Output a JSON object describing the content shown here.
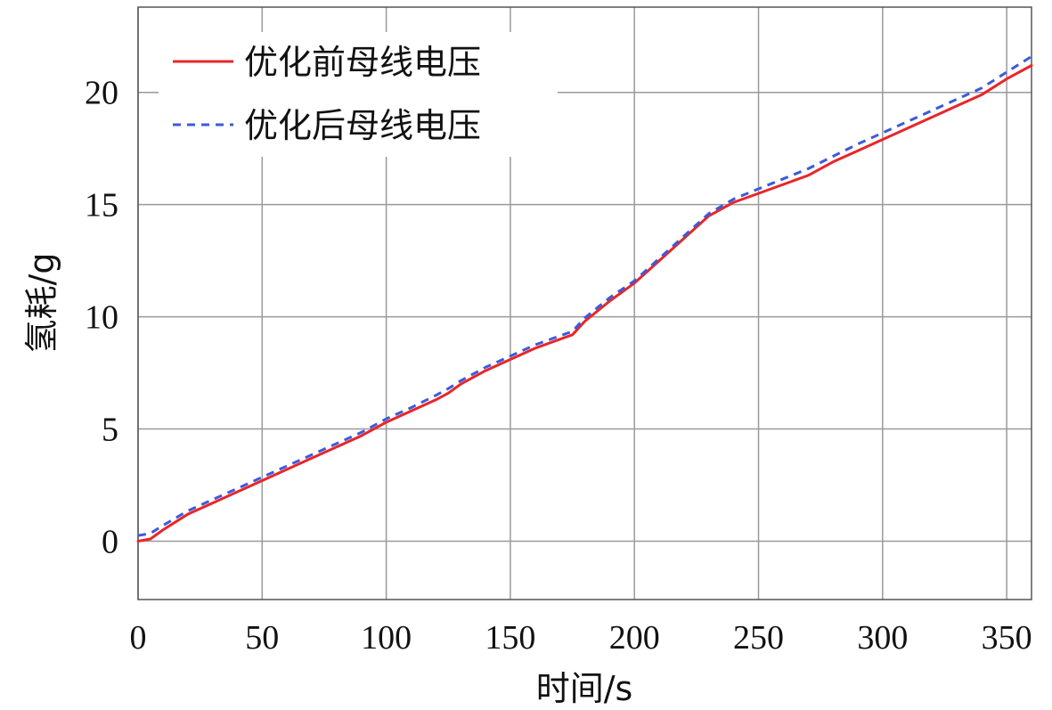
{
  "chart_data": {
    "type": "line",
    "xlabel": "时间/s",
    "ylabel": "氢耗/g",
    "xlim": [
      0,
      360
    ],
    "ylim": [
      -2.6,
      23.8
    ],
    "xticks": [
      0,
      50,
      100,
      150,
      200,
      250,
      300,
      350
    ],
    "yticks": [
      0,
      5,
      10,
      15,
      20
    ],
    "xtick_labels": [
      "0",
      "50",
      "100",
      "150",
      "200",
      "250",
      "300",
      "350"
    ],
    "ytick_labels": [
      "0",
      "5",
      "10",
      "15",
      "20"
    ],
    "grid": true,
    "legend_position": "top-left",
    "series": [
      {
        "name": "优化前母线电压",
        "color": "#e8262a",
        "style": "solid",
        "x": [
          0,
          5,
          10,
          20,
          30,
          50,
          70,
          90,
          100,
          110,
          120,
          125,
          130,
          140,
          150,
          160,
          170,
          175,
          180,
          190,
          200,
          210,
          220,
          230,
          240,
          250,
          260,
          270,
          280,
          290,
          300,
          310,
          320,
          330,
          340,
          350,
          360
        ],
        "y": [
          0.0,
          0.1,
          0.5,
          1.2,
          1.7,
          2.7,
          3.7,
          4.7,
          5.3,
          5.8,
          6.3,
          6.6,
          7.0,
          7.6,
          8.1,
          8.6,
          9.0,
          9.2,
          9.8,
          10.7,
          11.5,
          12.5,
          13.5,
          14.5,
          15.1,
          15.5,
          15.9,
          16.3,
          16.9,
          17.4,
          17.9,
          18.4,
          18.9,
          19.4,
          19.9,
          20.6,
          21.2
        ]
      },
      {
        "name": "优化后母线电压",
        "color": "#3b5bdb",
        "style": "dashed",
        "x": [
          0,
          5,
          10,
          20,
          30,
          50,
          70,
          90,
          100,
          110,
          120,
          125,
          130,
          140,
          150,
          160,
          170,
          175,
          180,
          190,
          200,
          210,
          220,
          230,
          240,
          250,
          260,
          270,
          280,
          290,
          300,
          310,
          320,
          330,
          340,
          350,
          360
        ],
        "y": [
          0.25,
          0.35,
          0.7,
          1.35,
          1.85,
          2.85,
          3.85,
          4.85,
          5.45,
          5.95,
          6.5,
          6.8,
          7.15,
          7.75,
          8.25,
          8.75,
          9.15,
          9.35,
          9.95,
          10.85,
          11.6,
          12.6,
          13.6,
          14.6,
          15.25,
          15.7,
          16.15,
          16.6,
          17.15,
          17.7,
          18.2,
          18.7,
          19.2,
          19.7,
          20.2,
          20.9,
          21.6
        ]
      }
    ]
  }
}
